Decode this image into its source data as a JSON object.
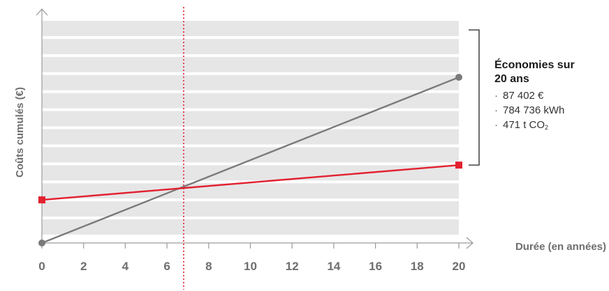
{
  "chart_data": {
    "type": "line",
    "title": "",
    "xlabel": "Durée (en années)",
    "ylabel": "Coûts cumulés (€)",
    "xlim": [
      0,
      20
    ],
    "ylim": [
      0,
      100
    ],
    "x_ticks": [
      "0",
      "2",
      "4",
      "6",
      "8",
      "10",
      "12",
      "14",
      "16",
      "18",
      "20"
    ],
    "y_ticks_shown": false,
    "grid": "horizontal bands",
    "break_even_year": 6.8,
    "series": [
      {
        "color": "#7a7a7a",
        "marker": "circle",
        "x": [
          0,
          20
        ],
        "y": [
          0,
          100
        ]
      },
      {
        "color": "#e3202f",
        "marker": "square",
        "x": [
          0,
          20
        ],
        "y": [
          26,
          47
        ]
      }
    ]
  },
  "savings": {
    "title": "Économies sur 20 ans",
    "items": [
      {
        "label": "87 402 €"
      },
      {
        "label": "784 736 kWh"
      },
      {
        "label": "471 t CO",
        "sub": "2"
      }
    ]
  },
  "colors": {
    "band": "#e6e6e7",
    "axis": "#9a9a9a",
    "bracket": "#222222",
    "breakeven": "#e3202f"
  }
}
